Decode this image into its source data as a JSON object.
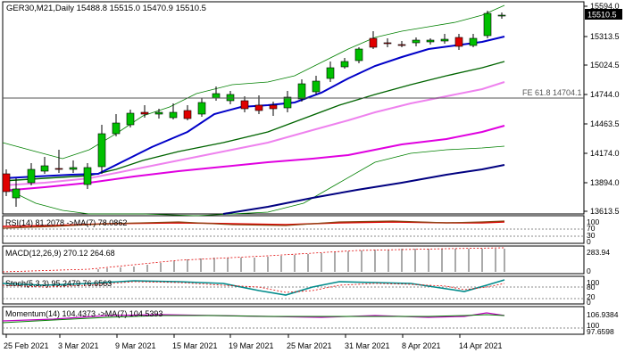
{
  "main": {
    "header": "GER30,M21,Daily  15488.8 15515.0 15470.9 15510.5",
    "fe_label": "FE 61.8 14704.1",
    "price_badge": "15510.5",
    "axis_labels": [
      "15594.0",
      "15313.5",
      "15024.5",
      "14744.0",
      "14463.5",
      "14174.0",
      "13894.0",
      "13613.5"
    ]
  },
  "rsi": {
    "header": "RSI(14) 81.2078 ->MA(7) 78.0862",
    "axis_labels": [
      "100",
      "70",
      "30",
      "0"
    ]
  },
  "macd": {
    "header": "MACD(12,26,9) 270.12 264.68",
    "axis_labels": [
      "283.94",
      "0"
    ]
  },
  "stoch": {
    "header": "Stoch(5,3,3) 95.2479 76.6563",
    "axis_labels": [
      "100",
      "80",
      "20",
      "0"
    ]
  },
  "momentum": {
    "header": "Momentum(14) 104.4373 ->MA(7) 104.5393",
    "axis_labels": [
      "106.9384",
      "100",
      "97.6598"
    ]
  },
  "dates": [
    "25 Feb 2021",
    "3 Mar 2021",
    "9 Mar 2021",
    "15 Mar 2021",
    "19 Mar 2021",
    "25 Mar 2021",
    "31 Mar 2021",
    "8 Apr 2021",
    "14 Apr 2021"
  ],
  "colors": {
    "bull": "#00c000",
    "bear": "#e00000",
    "bb": "#008000",
    "ma_fast": "#0000c8",
    "ma_mid": "#006400",
    "ma_light": "#ee82ee",
    "ma_magenta": "#e000e0",
    "ma_navy": "#000080"
  }
}
